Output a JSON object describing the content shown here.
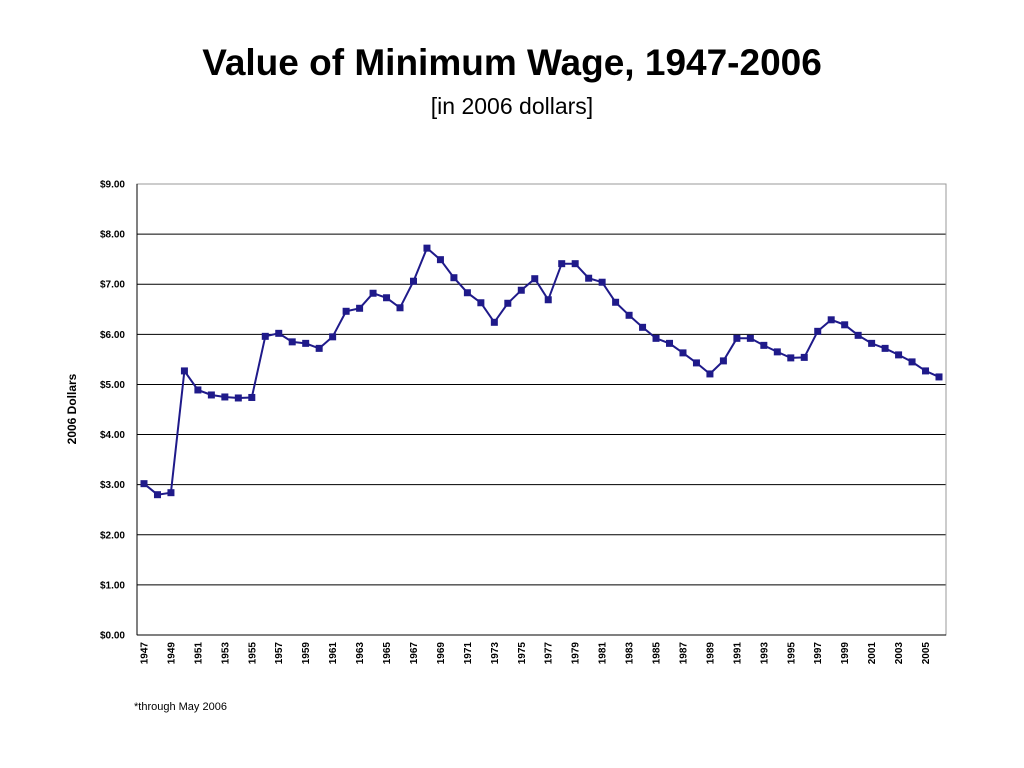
{
  "slide": {
    "title": "Value of Minimum Wage, 1947-2006",
    "subtitle": "[in 2006 dollars]",
    "footnote": "*through May 2006"
  },
  "chart_data": {
    "type": "line",
    "ylabel": "2006 Dollars",
    "xlabel": "",
    "ylim": [
      0,
      9
    ],
    "y_ticks": [
      0,
      1,
      2,
      3,
      4,
      5,
      6,
      7,
      8,
      9
    ],
    "y_tick_labels": [
      "$0.00",
      "$1.00",
      "$2.00",
      "$3.00",
      "$4.00",
      "$5.00",
      "$6.00",
      "$7.00",
      "$8.00",
      "$9.00"
    ],
    "x_tick_labels": [
      "1947",
      "1949",
      "1951",
      "1953",
      "1955",
      "1957",
      "1959",
      "1961",
      "1963",
      "1965",
      "1967",
      "1969",
      "1971",
      "1973",
      "1975",
      "1977",
      "1979",
      "1981",
      "1983",
      "1985",
      "1987",
      "1989",
      "1991",
      "1993",
      "1995",
      "1997",
      "1999",
      "2001",
      "2003",
      "2005"
    ],
    "grid": true,
    "line_color": "#1f1a8a",
    "marker": "square",
    "series": [
      {
        "x": [
          1947,
          1948,
          1949,
          1950,
          1951,
          1952,
          1953,
          1954,
          1955,
          1956,
          1957,
          1958,
          1959,
          1960,
          1961,
          1962,
          1963,
          1964,
          1965,
          1966,
          1967,
          1968,
          1969,
          1970,
          1971,
          1972,
          1973,
          1974,
          1975,
          1976,
          1977,
          1978,
          1979,
          1980,
          1981,
          1982,
          1983,
          1984,
          1985,
          1986,
          1987,
          1988,
          1989,
          1990,
          1991,
          1992,
          1993,
          1994,
          1995,
          1996,
          1997,
          1998,
          1999,
          2000,
          2001,
          2002,
          2003,
          2004,
          2005,
          2006
        ],
        "values": [
          3.02,
          2.8,
          2.84,
          5.27,
          4.89,
          4.79,
          4.75,
          4.73,
          4.74,
          5.96,
          6.02,
          5.85,
          5.82,
          5.72,
          5.95,
          6.46,
          6.52,
          6.82,
          6.73,
          6.53,
          7.06,
          7.72,
          7.49,
          7.13,
          6.83,
          6.63,
          6.24,
          6.62,
          6.88,
          7.11,
          6.69,
          7.41,
          7.41,
          7.12,
          7.04,
          6.64,
          6.38,
          6.14,
          5.92,
          5.82,
          5.63,
          5.43,
          5.21,
          5.47,
          5.92,
          5.92,
          5.78,
          5.65,
          5.53,
          5.54,
          6.06,
          6.29,
          6.19,
          5.98,
          5.82,
          5.72,
          5.59,
          5.45,
          5.27,
          5.15
        ]
      }
    ]
  }
}
